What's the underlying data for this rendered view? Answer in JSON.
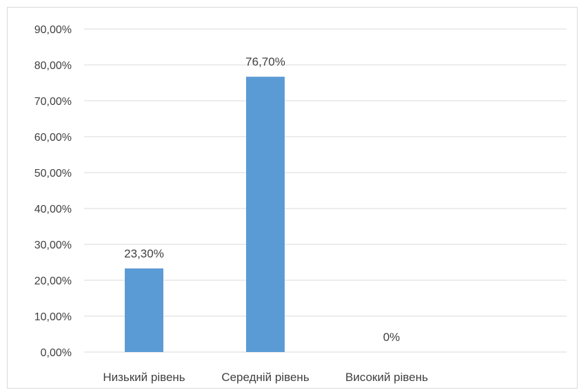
{
  "chart_data": {
    "type": "bar",
    "categories": [
      "Низький рівень",
      "Середній рівень",
      "Високий рівень"
    ],
    "values": [
      23.3,
      76.7,
      0
    ],
    "data_labels": [
      "23,30%",
      "76,70%",
      "0%"
    ],
    "ylim": [
      0,
      90
    ],
    "y_ticks": [
      0,
      10,
      20,
      30,
      40,
      50,
      60,
      70,
      80,
      90
    ],
    "y_tick_labels": [
      "0,00%",
      "10,00%",
      "20,00%",
      "30,00%",
      "40,00%",
      "50,00%",
      "60,00%",
      "70,00%",
      "80,00%",
      "90,00%"
    ],
    "grid": true,
    "bar_color": "#5B9BD5",
    "title": "",
    "xlabel": "",
    "ylabel": ""
  }
}
